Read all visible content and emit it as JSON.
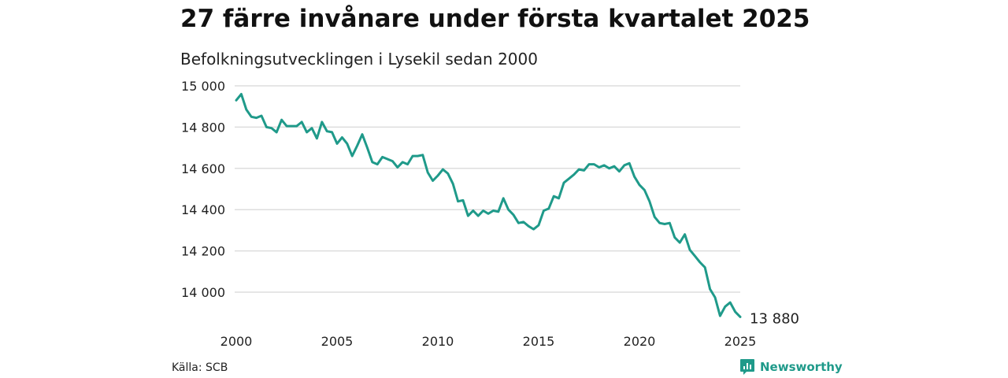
{
  "header": {
    "title": "27 färre invånare under första kvartalet 2025",
    "subtitle": "Befolkningsutvecklingen i Lysekil sedan 2000"
  },
  "footer": {
    "source": "Källa: SCB",
    "brand": "Newsworthy"
  },
  "colors": {
    "line": "#1f9a8a",
    "grid": "#dddddd",
    "brand": "#1f9a8a"
  },
  "icons": {
    "brand": "newsworthy-logo-icon"
  },
  "chart_data": {
    "type": "line",
    "title": "27 färre invånare under första kvartalet 2025",
    "subtitle": "Befolkningsutvecklingen i Lysekil sedan 2000",
    "xlabel": "",
    "ylabel": "",
    "xlim": [
      2000,
      2025
    ],
    "ylim": [
      13880,
      15000
    ],
    "y_ticks": [
      15000,
      14800,
      14600,
      14400,
      14200,
      14000
    ],
    "y_tick_labels": [
      "15 000",
      "14 800",
      "14 600",
      "14 400",
      "14 200",
      "14 000"
    ],
    "x_ticks": [
      2000,
      2005,
      2010,
      2015,
      2020,
      2025
    ],
    "x_tick_labels": [
      "2000",
      "2005",
      "2010",
      "2015",
      "2020",
      "2025"
    ],
    "grid": "horizontal",
    "end_label": "13 880",
    "series": [
      {
        "values": [
          [
            2000.0,
            14930
          ],
          [
            2000.25,
            14960
          ],
          [
            2000.5,
            14885
          ],
          [
            2000.75,
            14850
          ],
          [
            2001.0,
            14845
          ],
          [
            2001.25,
            14855
          ],
          [
            2001.5,
            14800
          ],
          [
            2001.75,
            14795
          ],
          [
            2002.0,
            14775
          ],
          [
            2002.25,
            14835
          ],
          [
            2002.5,
            14805
          ],
          [
            2002.75,
            14805
          ],
          [
            2003.0,
            14805
          ],
          [
            2003.25,
            14825
          ],
          [
            2003.5,
            14775
          ],
          [
            2003.75,
            14795
          ],
          [
            2004.0,
            14745
          ],
          [
            2004.25,
            14825
          ],
          [
            2004.5,
            14780
          ],
          [
            2004.75,
            14775
          ],
          [
            2005.0,
            14720
          ],
          [
            2005.25,
            14750
          ],
          [
            2005.5,
            14720
          ],
          [
            2005.75,
            14660
          ],
          [
            2006.0,
            14710
          ],
          [
            2006.25,
            14765
          ],
          [
            2006.5,
            14700
          ],
          [
            2006.75,
            14630
          ],
          [
            2007.0,
            14620
          ],
          [
            2007.25,
            14655
          ],
          [
            2007.5,
            14645
          ],
          [
            2007.75,
            14635
          ],
          [
            2008.0,
            14605
          ],
          [
            2008.25,
            14630
          ],
          [
            2008.5,
            14620
          ],
          [
            2008.75,
            14660
          ],
          [
            2009.0,
            14660
          ],
          [
            2009.25,
            14665
          ],
          [
            2009.5,
            14580
          ],
          [
            2009.75,
            14540
          ],
          [
            2010.0,
            14565
          ],
          [
            2010.25,
            14595
          ],
          [
            2010.5,
            14575
          ],
          [
            2010.75,
            14525
          ],
          [
            2011.0,
            14440
          ],
          [
            2011.25,
            14445
          ],
          [
            2011.5,
            14370
          ],
          [
            2011.75,
            14395
          ],
          [
            2012.0,
            14370
          ],
          [
            2012.25,
            14395
          ],
          [
            2012.5,
            14380
          ],
          [
            2012.75,
            14395
          ],
          [
            2013.0,
            14390
          ],
          [
            2013.25,
            14455
          ],
          [
            2013.5,
            14400
          ],
          [
            2013.75,
            14375
          ],
          [
            2014.0,
            14335
          ],
          [
            2014.25,
            14340
          ],
          [
            2014.5,
            14320
          ],
          [
            2014.75,
            14305
          ],
          [
            2015.0,
            14325
          ],
          [
            2015.25,
            14395
          ],
          [
            2015.5,
            14405
          ],
          [
            2015.75,
            14465
          ],
          [
            2016.0,
            14455
          ],
          [
            2016.25,
            14530
          ],
          [
            2016.5,
            14550
          ],
          [
            2016.75,
            14570
          ],
          [
            2017.0,
            14595
          ],
          [
            2017.25,
            14590
          ],
          [
            2017.5,
            14620
          ],
          [
            2017.75,
            14620
          ],
          [
            2018.0,
            14605
          ],
          [
            2018.25,
            14615
          ],
          [
            2018.5,
            14600
          ],
          [
            2018.75,
            14610
          ],
          [
            2019.0,
            14585
          ],
          [
            2019.25,
            14615
          ],
          [
            2019.5,
            14625
          ],
          [
            2019.75,
            14560
          ],
          [
            2020.0,
            14520
          ],
          [
            2020.25,
            14495
          ],
          [
            2020.5,
            14440
          ],
          [
            2020.75,
            14365
          ],
          [
            2021.0,
            14335
          ],
          [
            2021.25,
            14330
          ],
          [
            2021.5,
            14335
          ],
          [
            2021.75,
            14265
          ],
          [
            2022.0,
            14240
          ],
          [
            2022.25,
            14280
          ],
          [
            2022.5,
            14205
          ],
          [
            2022.75,
            14175
          ],
          [
            2023.0,
            14145
          ],
          [
            2023.25,
            14120
          ],
          [
            2023.5,
            14015
          ],
          [
            2023.75,
            13975
          ],
          [
            2024.0,
            13885
          ],
          [
            2024.25,
            13930
          ],
          [
            2024.5,
            13950
          ],
          [
            2024.75,
            13905
          ],
          [
            2025.0,
            13880
          ]
        ]
      }
    ]
  }
}
